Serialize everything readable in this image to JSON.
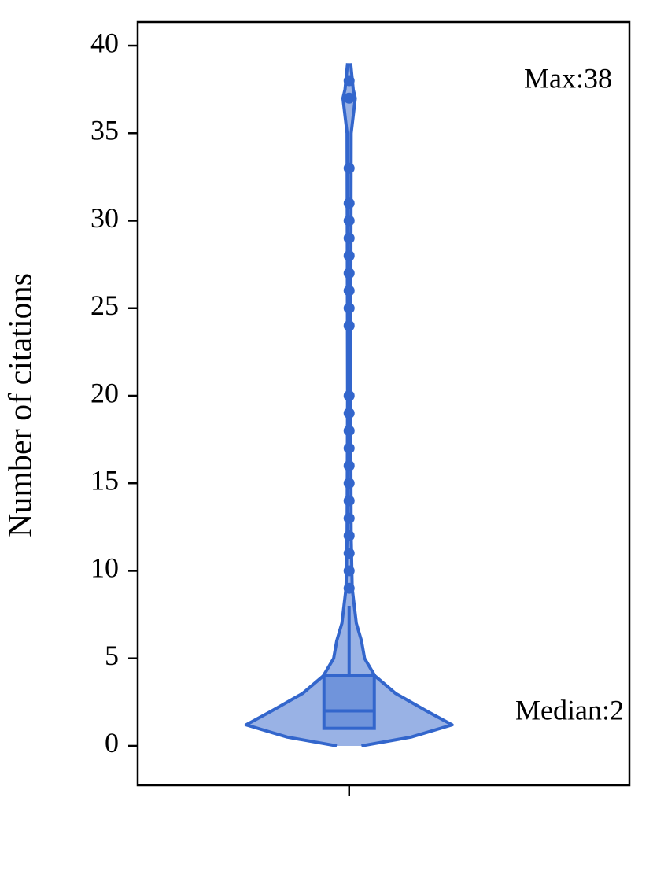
{
  "chart_data": {
    "type": "violin",
    "y_label": "Number of citations",
    "categories": [
      null
    ],
    "ylim": [
      -2.25,
      41.35
    ],
    "yticks": [
      0,
      5,
      10,
      15,
      20,
      25,
      30,
      35,
      40
    ],
    "color": "#3366cc",
    "violin": {
      "y": [
        0,
        0.5,
        1.2,
        2,
        3,
        4,
        5,
        6,
        7,
        8,
        9,
        12,
        20,
        35,
        36.5,
        37,
        37.5,
        39
      ],
      "density": [
        0.12,
        0.6,
        1.0,
        0.75,
        0.45,
        0.25,
        0.15,
        0.12,
        0.07,
        0.05,
        0.03,
        0.02,
        0.015,
        0.02,
        0.05,
        0.06,
        0.04,
        0.015
      ]
    },
    "box": {
      "whisker_low": 1,
      "q1": 1,
      "median": 2,
      "q3": 4,
      "whisker_high": 8
    },
    "outliers": [
      9,
      10,
      11,
      12,
      13,
      14,
      15,
      16,
      17,
      18,
      19,
      20,
      24,
      25,
      26,
      27,
      28,
      29,
      30,
      31,
      33,
      37,
      38
    ],
    "annotations": [
      "Max:38",
      "Median:2"
    ]
  }
}
